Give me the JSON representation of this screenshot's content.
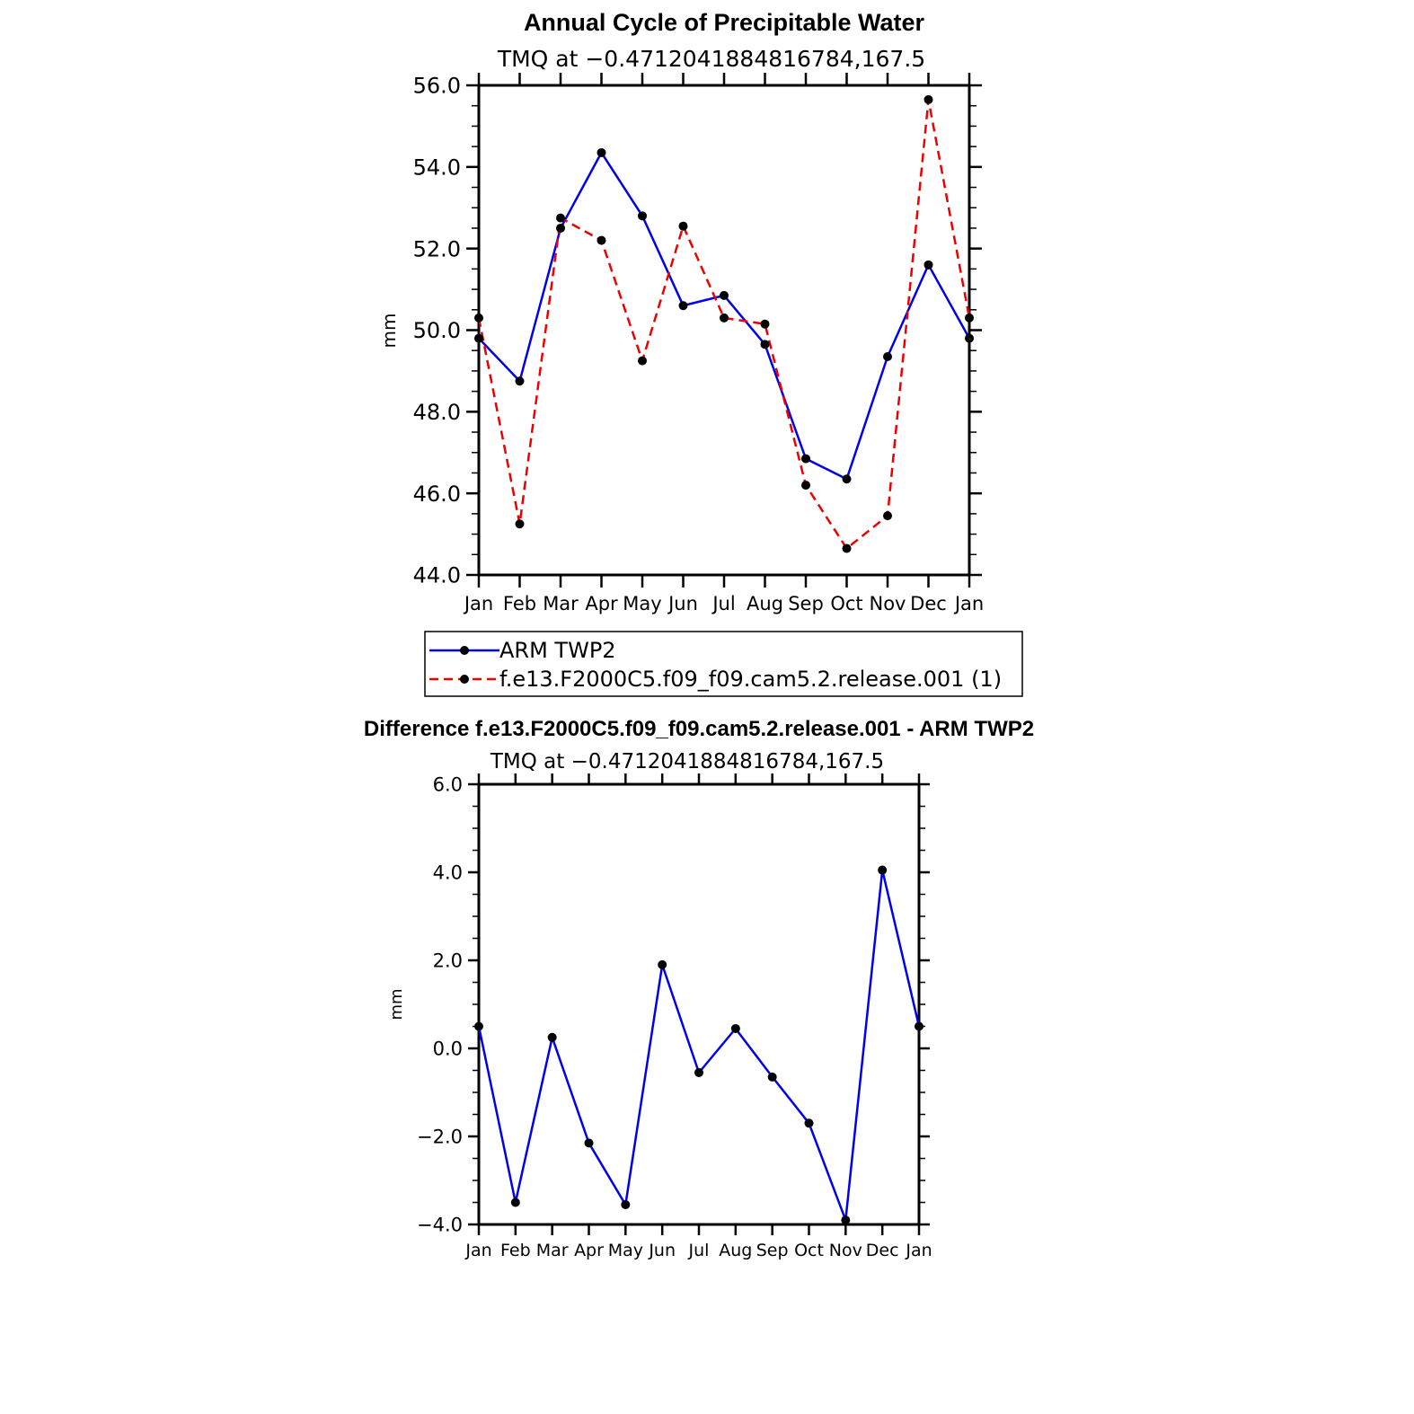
{
  "chart_data": [
    {
      "type": "line",
      "title": "Annual Cycle of Precipitable Water",
      "subtitle": "TMQ at −0.4712041884816784,167.5",
      "xlabel": "",
      "ylabel": "mm",
      "categories": [
        "Jan",
        "Feb",
        "Mar",
        "Apr",
        "May",
        "Jun",
        "Jul",
        "Aug",
        "Sep",
        "Oct",
        "Nov",
        "Dec",
        "Jan"
      ],
      "ylim": [
        44.0,
        56.0
      ],
      "yticks": [
        {
          "value": 44.0,
          "label": "44.0"
        },
        {
          "value": 46.0,
          "label": "46.0"
        },
        {
          "value": 48.0,
          "label": "48.0"
        },
        {
          "value": 50.0,
          "label": "50.0"
        },
        {
          "value": 52.0,
          "label": "52.0"
        },
        {
          "value": 54.0,
          "label": "54.0"
        },
        {
          "value": 56.0,
          "label": "56.0"
        }
      ],
      "grid": false,
      "legend_placement": "bottom",
      "series": [
        {
          "name": "ARM TWP2",
          "color": "#0000ee",
          "dash": "solid",
          "values": [
            49.8,
            48.75,
            52.5,
            54.35,
            52.8,
            50.6,
            50.85,
            49.65,
            46.85,
            46.35,
            49.35,
            51.6,
            49.8
          ]
        },
        {
          "name": "f.e13.F2000C5.f09_f09.cam5.2.release.001 (1)",
          "color": "#ee0000",
          "dash": "dashed",
          "values": [
            50.3,
            45.25,
            52.75,
            52.2,
            49.25,
            52.55,
            50.3,
            50.15,
            46.2,
            44.65,
            45.45,
            55.65,
            50.3
          ]
        }
      ]
    },
    {
      "type": "line",
      "title": "Difference f.e13.F2000C5.f09_f09.cam5.2.release.001 - ARM TWP2",
      "subtitle": "TMQ at −0.4712041884816784,167.5",
      "xlabel": "",
      "ylabel": "mm",
      "categories": [
        "Jan",
        "Feb",
        "Mar",
        "Apr",
        "May",
        "Jun",
        "Jul",
        "Aug",
        "Sep",
        "Oct",
        "Nov",
        "Dec",
        "Jan"
      ],
      "ylim": [
        -4.0,
        6.0
      ],
      "yticks": [
        {
          "value": -4.0,
          "label": "−4.0"
        },
        {
          "value": -2.0,
          "label": "−2.0"
        },
        {
          "value": 0.0,
          "label": "0.0"
        },
        {
          "value": 2.0,
          "label": "2.0"
        },
        {
          "value": 4.0,
          "label": "4.0"
        },
        {
          "value": 6.0,
          "label": "6.0"
        }
      ],
      "grid": false,
      "series": [
        {
          "color": "#0000ee",
          "dash": "solid",
          "values": [
            0.5,
            -3.5,
            0.25,
            -2.15,
            -3.55,
            1.9,
            -0.55,
            0.45,
            -0.65,
            -1.7,
            -3.9,
            4.05,
            0.5
          ]
        }
      ]
    }
  ]
}
